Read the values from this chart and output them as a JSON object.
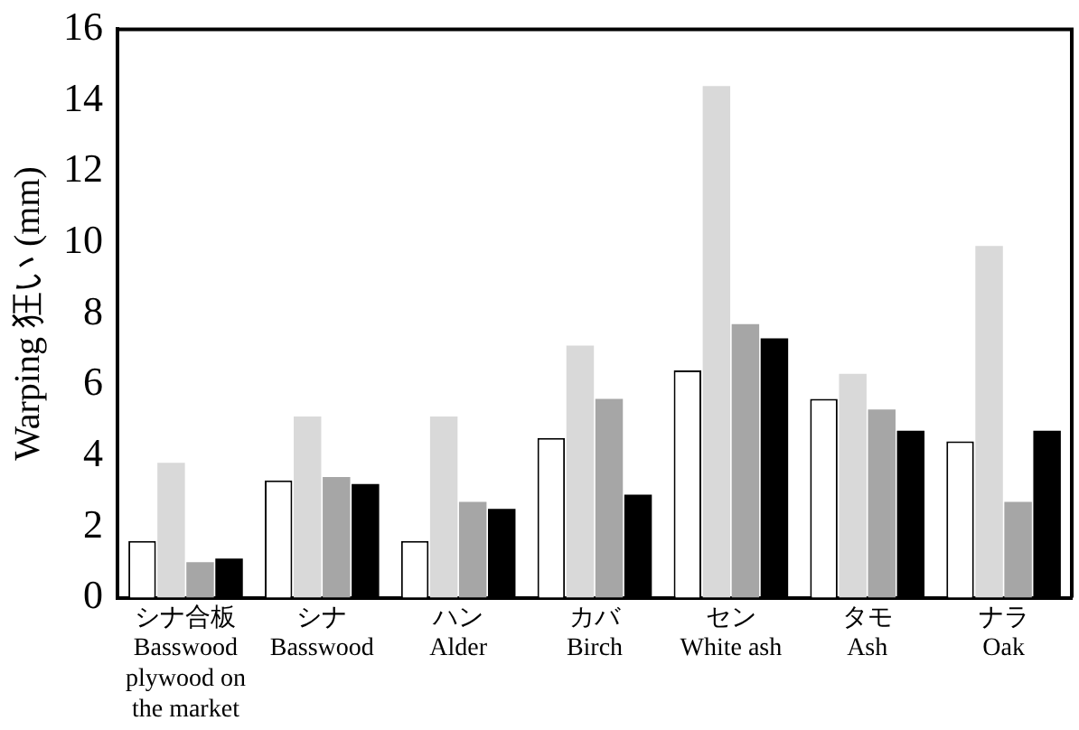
{
  "chart_data": {
    "type": "bar",
    "ylabel": "Warping 狂い (mm)",
    "categories": [
      "シナ合板\nBasswood\nplywood on\nthe market",
      "シナ\nBasswood",
      "ハン\nAlder",
      "カバ\nBirch",
      "セン\nWhite ash",
      "タモ\nAsh",
      "ナラ\nOak"
    ],
    "series": [
      {
        "color": "#ffffff",
        "values": [
          1.6,
          3.3,
          1.6,
          4.5,
          6.4,
          5.6,
          4.4
        ]
      },
      {
        "color": "#d9d9d9",
        "values": [
          3.8,
          5.1,
          5.1,
          7.1,
          14.4,
          6.3,
          9.9
        ]
      },
      {
        "color": "#a6a6a6",
        "values": [
          1.0,
          3.4,
          2.7,
          5.6,
          7.7,
          5.3,
          2.7
        ]
      },
      {
        "color": "#000000",
        "values": [
          1.1,
          3.2,
          2.5,
          2.9,
          7.3,
          4.7,
          4.7
        ]
      }
    ],
    "ylim": [
      0,
      16
    ],
    "yticks": [
      0,
      2,
      4,
      6,
      8,
      10,
      12,
      14,
      16
    ],
    "grid": false,
    "legend": false
  }
}
